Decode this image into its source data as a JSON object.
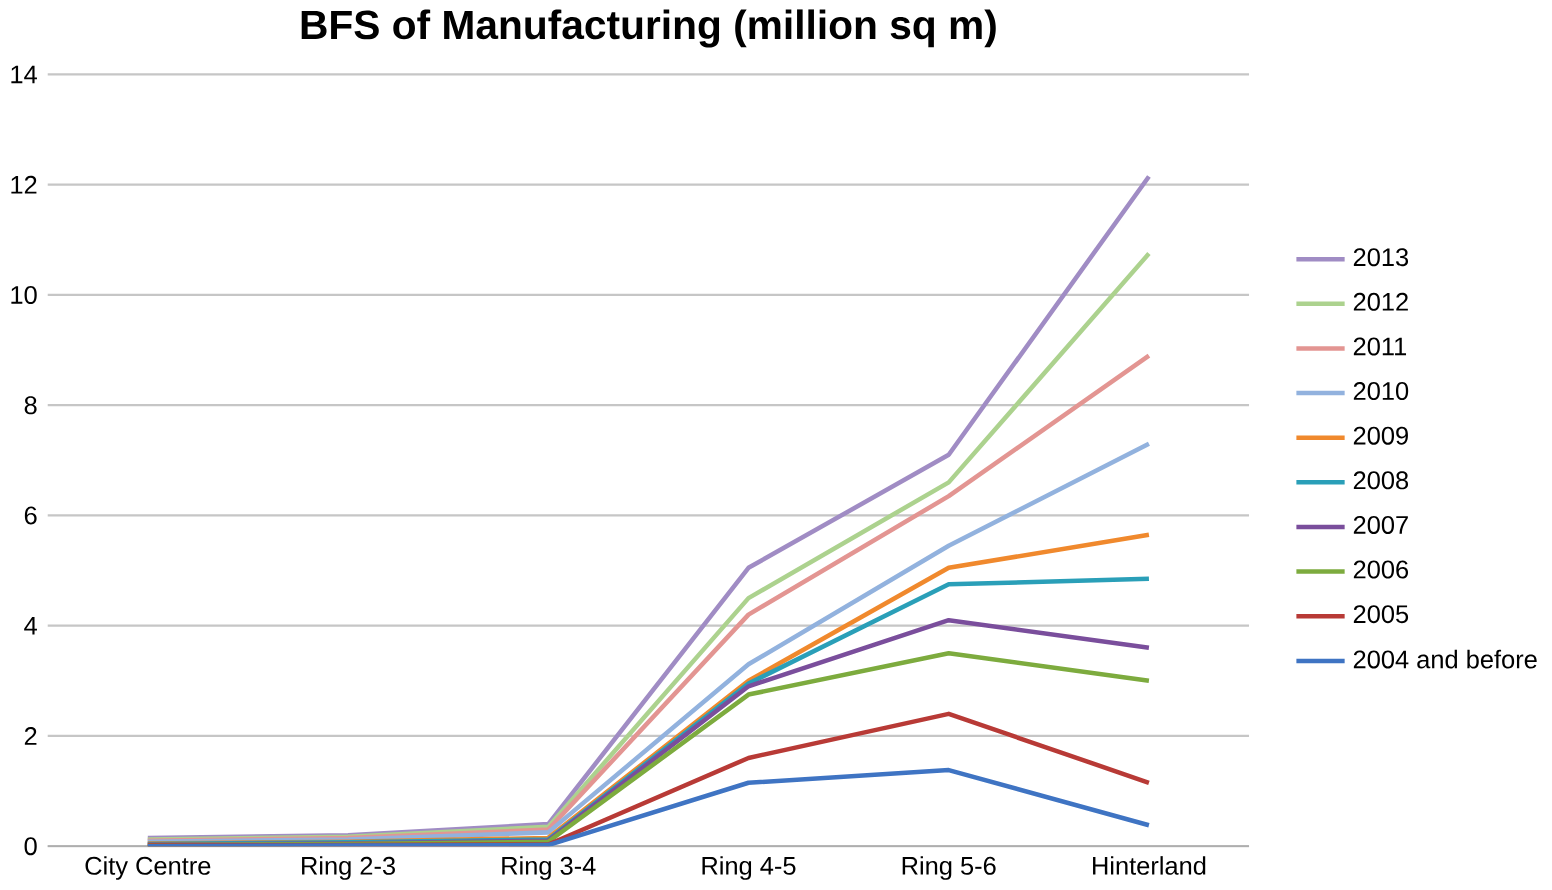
{
  "chart_data": {
    "type": "line",
    "title": "BFS of Manufacturing (million sq m)",
    "categories": [
      "City Centre",
      "Ring 2-3",
      "Ring 3-4",
      "Ring 4-5",
      "Ring 5-6",
      "Hinterland"
    ],
    "series": [
      {
        "name": "2013",
        "color": "#a08cc4",
        "values": [
          0.15,
          0.2,
          0.4,
          5.05,
          7.1,
          12.15
        ]
      },
      {
        "name": "2012",
        "color": "#acd28e",
        "values": [
          0.12,
          0.17,
          0.35,
          4.5,
          6.6,
          10.75
        ]
      },
      {
        "name": "2011",
        "color": "#e39592",
        "values": [
          0.1,
          0.15,
          0.3,
          4.2,
          6.35,
          8.9
        ]
      },
      {
        "name": "2010",
        "color": "#92b2de",
        "values": [
          0.08,
          0.12,
          0.25,
          3.3,
          5.45,
          7.3
        ]
      },
      {
        "name": "2009",
        "color": "#f0892d",
        "values": [
          0.05,
          0.08,
          0.15,
          3.0,
          5.05,
          5.65
        ]
      },
      {
        "name": "2008",
        "color": "#2a9fb8",
        "values": [
          0.04,
          0.07,
          0.12,
          2.95,
          4.75,
          4.85
        ]
      },
      {
        "name": "2007",
        "color": "#7a4e9c",
        "values": [
          0.03,
          0.05,
          0.1,
          2.9,
          4.1,
          3.6
        ]
      },
      {
        "name": "2006",
        "color": "#7dab3e",
        "values": [
          0.02,
          0.04,
          0.08,
          2.75,
          3.5,
          3.0
        ]
      },
      {
        "name": "2005",
        "color": "#b83a36",
        "values": [
          0.01,
          0.02,
          0.03,
          1.6,
          2.4,
          1.15
        ]
      },
      {
        "name": "2004 and before",
        "color": "#3f74c3",
        "values": [
          0.0,
          0.01,
          0.02,
          1.15,
          1.38,
          0.38
        ]
      }
    ],
    "ylim": [
      0,
      14
    ],
    "yticks": [
      0,
      2,
      4,
      6,
      8,
      10,
      12,
      14
    ],
    "grid": "y",
    "legend": "right",
    "marker": "none",
    "line_style": "solid"
  }
}
